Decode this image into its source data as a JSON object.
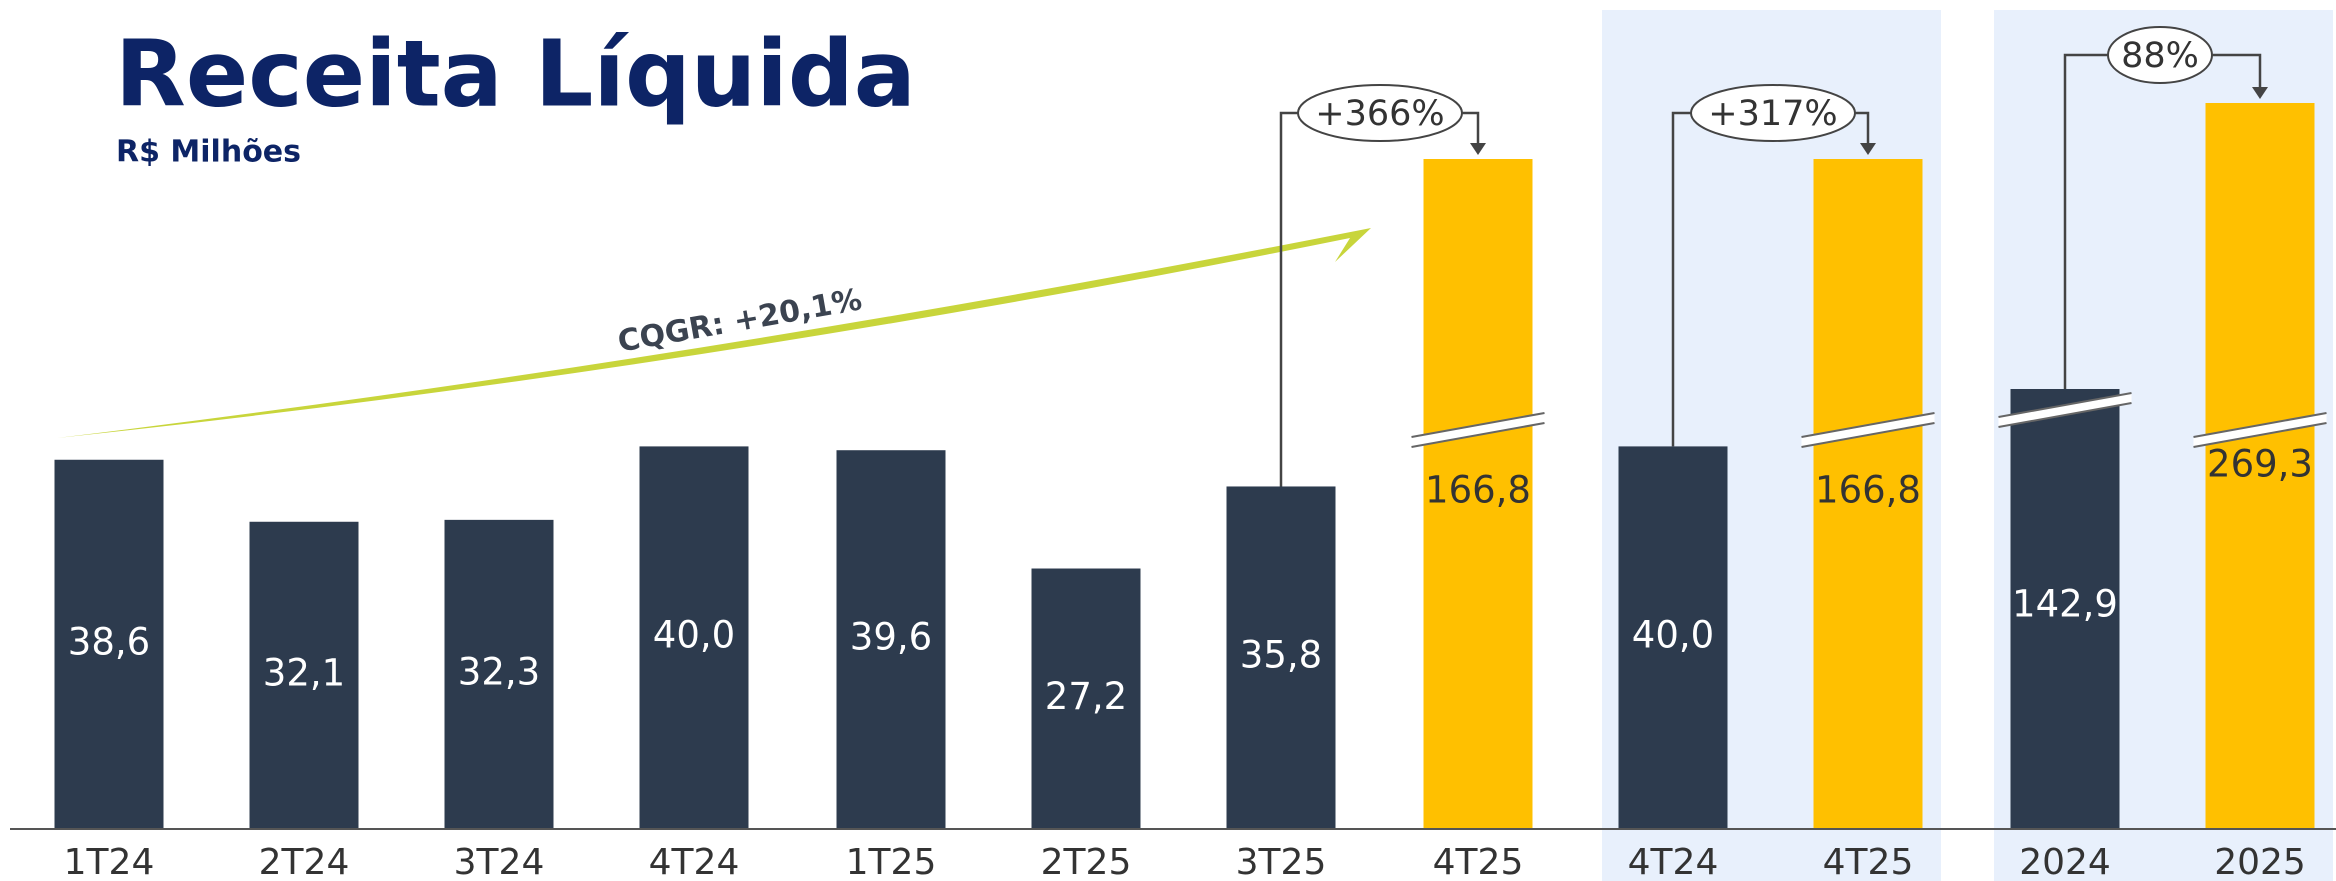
{
  "chart_data": {
    "type": "bar",
    "title": "Receita Líquida",
    "subtitle": "R$ Milhões",
    "annotation": "CQGR: +20,1%",
    "categories": [
      "1T24",
      "2T24",
      "3T24",
      "4T24",
      "1T25",
      "2T25",
      "3T25",
      "4T25",
      "4T24",
      "4T25",
      "2024",
      "2025"
    ],
    "values": [
      38.6,
      32.1,
      32.3,
      40.0,
      39.6,
      27.2,
      35.8,
      166.8,
      40.0,
      166.8,
      142.9,
      269.3
    ],
    "value_labels": [
      "38,6",
      "32,1",
      "32,3",
      "40,0",
      "39,6",
      "27,2",
      "35,8",
      "166,8",
      "40,0",
      "166,8",
      "142,9",
      "269,3"
    ],
    "colors": [
      "#2d3b4e",
      "#2d3b4e",
      "#2d3b4e",
      "#2d3b4e",
      "#2d3b4e",
      "#2d3b4e",
      "#2d3b4e",
      "#ffc000",
      "#2d3b4e",
      "#ffc000",
      "#2d3b4e",
      "#ffc000"
    ],
    "comparisons": [
      "+366%",
      "+317%",
      "88%"
    ]
  }
}
